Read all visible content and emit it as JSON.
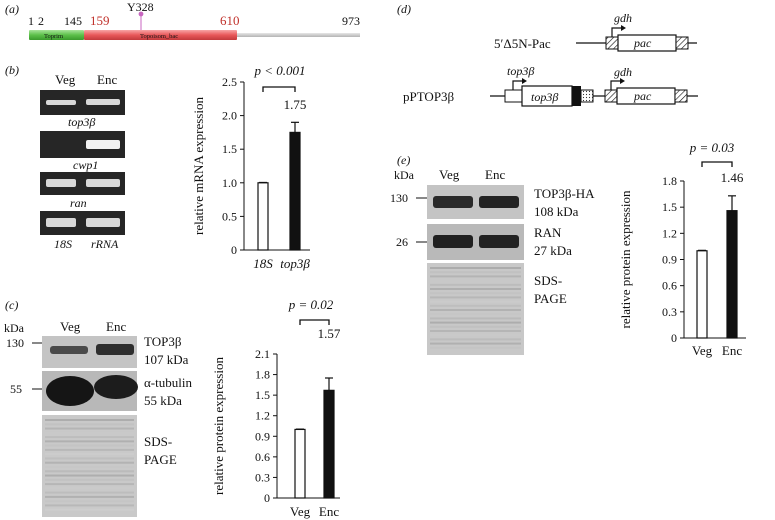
{
  "panels": {
    "a": {
      "label": "(a)",
      "ticks": [
        "1",
        "2",
        "145",
        "159",
        "610",
        "973"
      ],
      "tick_colors": [
        "#111111",
        "#111111",
        "#111111",
        "#c0302a",
        "#c0302a",
        "#111111"
      ],
      "mutation": "Y328",
      "domains": [
        {
          "name": "Toprim",
          "color": "#5cc04a"
        },
        {
          "name": "Topoisom_bac",
          "color": "#e8585a"
        }
      ]
    },
    "b": {
      "label": "(b)",
      "lane_labels": [
        "Veg",
        "Enc"
      ],
      "gel_labels": [
        "top3β",
        "cwp1",
        "ran",
        "18S",
        "rRNA"
      ],
      "chart_data": {
        "type": "bar",
        "categories": [
          "18S",
          "top3β"
        ],
        "values": [
          1.0,
          1.75
        ],
        "errors": [
          0.0,
          0.15
        ],
        "bar_fills": [
          "#ffffff",
          "#111111"
        ],
        "ylabel": "relative mRNA expression",
        "ylim": [
          0,
          2.5
        ],
        "yticks": [
          "0",
          "0.5",
          "1.0",
          "1.5",
          "2.0",
          "2.5"
        ],
        "pvalue": "p < 0.001",
        "value_label": "1.75"
      }
    },
    "c": {
      "label": "(c)",
      "kda": "kDa",
      "lane_labels": [
        "Veg",
        "Enc"
      ],
      "markers": [
        "130",
        "55"
      ],
      "band_labels": [
        "TOP3β",
        "107 kDa",
        "α-tubulin",
        "55 kDa",
        "SDS-",
        "PAGE"
      ],
      "chart_data": {
        "type": "bar",
        "categories": [
          "Veg",
          "Enc"
        ],
        "values": [
          1.0,
          1.57
        ],
        "errors": [
          0.0,
          0.18
        ],
        "bar_fills": [
          "#ffffff",
          "#111111"
        ],
        "ylabel": "relative protein expression",
        "ylim": [
          0,
          2.1
        ],
        "yticks": [
          "0",
          "0.3",
          "0.6",
          "0.9",
          "1.2",
          "1.5",
          "1.8",
          "2.1"
        ],
        "pvalue": "p = 0.02",
        "value_label": "1.57"
      }
    },
    "d": {
      "label": "(d)",
      "constructs": [
        "5′Δ5N-Pac",
        "pPTOP3β"
      ],
      "gene_labels": [
        "gdh",
        "pac",
        "top3β",
        "top3β",
        "gdh",
        "pac"
      ]
    },
    "e": {
      "label": "(e)",
      "kda": "kDa",
      "lane_labels": [
        "Veg",
        "Enc"
      ],
      "markers": [
        "130",
        "26"
      ],
      "band_labels": [
        "TOP3β-HA",
        "108 kDa",
        "RAN",
        "27 kDa",
        "SDS-",
        "PAGE"
      ],
      "chart_data": {
        "type": "bar",
        "categories": [
          "Veg",
          "Enc"
        ],
        "values": [
          1.0,
          1.46
        ],
        "errors": [
          0.0,
          0.17
        ],
        "bar_fills": [
          "#ffffff",
          "#111111"
        ],
        "ylabel": "relative protein expression",
        "ylim": [
          0,
          1.8
        ],
        "yticks": [
          "0",
          "0.3",
          "0.6",
          "0.9",
          "1.2",
          "1.5",
          "1.8"
        ],
        "pvalue": "p = 0.03",
        "value_label": "1.46"
      }
    }
  }
}
